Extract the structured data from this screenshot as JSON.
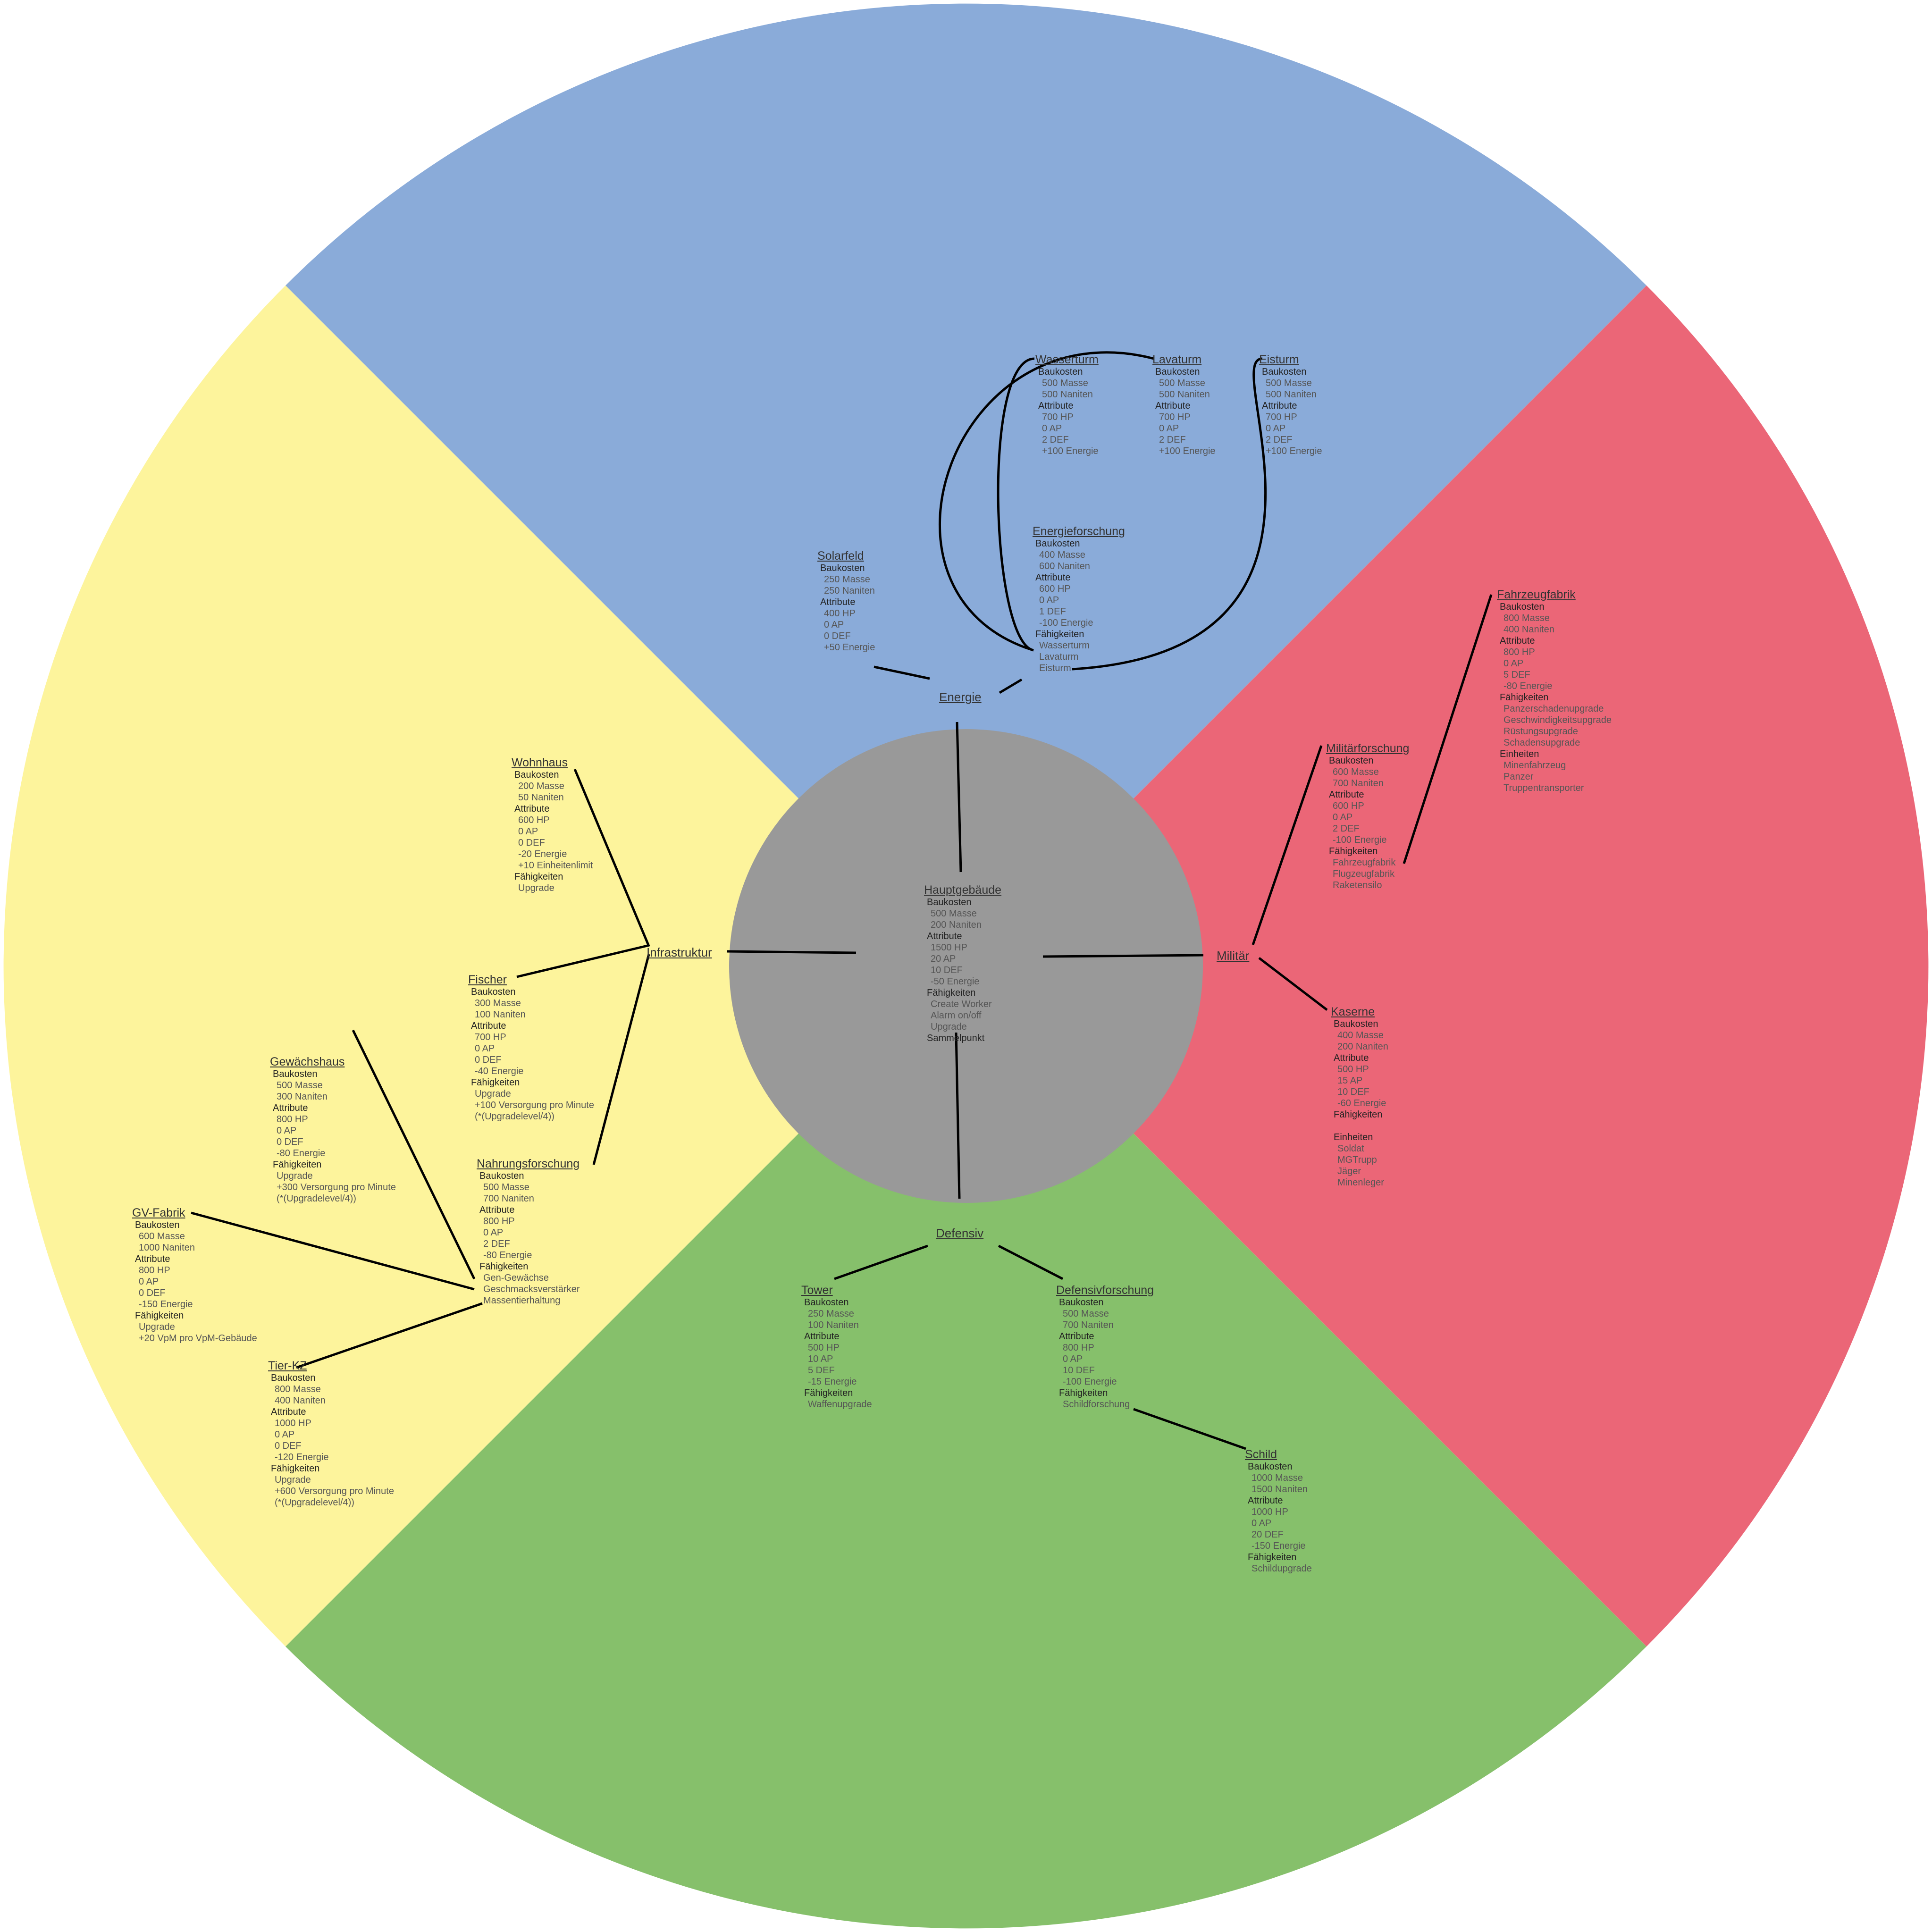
{
  "colors": {
    "energie": "#8AABD9",
    "militaer": "#EB6677",
    "defensiv": "#86C06B",
    "infrastruktur": "#FDF49C",
    "center": "#999999"
  },
  "categories": {
    "energie": "Energie",
    "militaer": "Militär",
    "defensiv": "Defensiv",
    "infrastruktur": "Infrastruktur"
  },
  "buildings": {
    "hauptgebaeude": {
      "title": "Hauptgebäude",
      "sections": [
        {
          "label": "Baukosten",
          "items": [
            "500 Masse",
            "200 Naniten"
          ]
        },
        {
          "label": "Attribute",
          "items": [
            "1500 HP",
            "20 AP",
            "10 DEF",
            "-50 Energie"
          ]
        },
        {
          "label": "Fähigkeiten",
          "items": [
            "Create Worker",
            "Alarm on/off",
            "Upgrade"
          ]
        },
        {
          "label": "Sammelpunkt",
          "items": []
        }
      ]
    },
    "solarfeld": {
      "title": "Solarfeld",
      "sections": [
        {
          "label": "Baukosten",
          "items": [
            "250 Masse",
            "250 Naniten"
          ]
        },
        {
          "label": "Attribute",
          "items": [
            "400 HP",
            "0 AP",
            "0 DEF",
            "+50 Energie"
          ]
        }
      ]
    },
    "energieforschung": {
      "title": "Energieforschung",
      "sections": [
        {
          "label": "Baukosten",
          "items": [
            "400 Masse",
            "600 Naniten"
          ]
        },
        {
          "label": "Attribute",
          "items": [
            "600 HP",
            "0 AP",
            "1 DEF",
            "-100 Energie"
          ]
        },
        {
          "label": "Fähigkeiten",
          "items": [
            "Wasserturm",
            "Lavaturm",
            "Eisturm"
          ]
        }
      ]
    },
    "wasserturm": {
      "title": "Wasserturm",
      "sections": [
        {
          "label": "Baukosten",
          "items": [
            "500 Masse",
            "500 Naniten"
          ]
        },
        {
          "label": "Attribute",
          "items": [
            "700 HP",
            "0 AP",
            "2 DEF",
            "+100 Energie"
          ]
        }
      ]
    },
    "lavaturm": {
      "title": "Lavaturm",
      "sections": [
        {
          "label": "Baukosten",
          "items": [
            "500 Masse",
            "500 Naniten"
          ]
        },
        {
          "label": "Attribute",
          "items": [
            "700 HP",
            "0 AP",
            "2 DEF",
            "+100 Energie"
          ]
        }
      ]
    },
    "eisturm": {
      "title": "Eisturm",
      "sections": [
        {
          "label": "Baukosten",
          "items": [
            "500 Masse",
            "500 Naniten"
          ]
        },
        {
          "label": "Attribute",
          "items": [
            "700 HP",
            "0 AP",
            "2 DEF",
            "+100 Energie"
          ]
        }
      ]
    },
    "fahrzeugfabrik": {
      "title": "Fahrzeugfabrik",
      "sections": [
        {
          "label": "Baukosten",
          "items": [
            "800 Masse",
            "400 Naniten"
          ]
        },
        {
          "label": "Attribute",
          "items": [
            "800 HP",
            "0 AP",
            "5 DEF",
            "-80 Energie"
          ]
        },
        {
          "label": "Fähigkeiten",
          "items": [
            "Panzerschadenupgrade",
            "Geschwindigkeitsupgrade",
            "Rüstungsupgrade",
            "Schadensupgrade"
          ]
        },
        {
          "label": "Einheiten",
          "items": [
            "Minenfahrzeug",
            "Panzer",
            "Truppentransporter"
          ]
        }
      ]
    },
    "militaerforschung": {
      "title": "Militärforschung",
      "sections": [
        {
          "label": "Baukosten",
          "items": [
            "600 Masse",
            "700 Naniten"
          ]
        },
        {
          "label": "Attribute",
          "items": [
            "600 HP",
            "0 AP",
            "2 DEF",
            "-100 Energie"
          ]
        },
        {
          "label": "Fähigkeiten",
          "items": [
            "Fahrzeugfabrik",
            "Flugzeugfabrik",
            "Raketensilo"
          ]
        }
      ]
    },
    "kaserne": {
      "title": "Kaserne",
      "sections": [
        {
          "label": "Baukosten",
          "items": [
            "400 Masse",
            "200 Naniten"
          ]
        },
        {
          "label": "Attribute",
          "items": [
            "500 HP",
            "15 AP",
            "10 DEF",
            "-60 Energie"
          ]
        },
        {
          "label": "Fähigkeiten",
          "items": [
            ""
          ]
        },
        {
          "label": "Einheiten",
          "items": [
            "Soldat",
            "MGTrupp",
            "Jäger",
            "Minenleger"
          ]
        }
      ]
    },
    "tower": {
      "title": "Tower",
      "sections": [
        {
          "label": "Baukosten",
          "items": [
            "250 Masse",
            "100 Naniten"
          ]
        },
        {
          "label": "Attribute",
          "items": [
            "500 HP",
            "10 AP",
            "5 DEF",
            "-15 Energie"
          ]
        },
        {
          "label": "Fähigkeiten",
          "items": [
            "Waffenupgrade"
          ]
        }
      ]
    },
    "defensivforschung": {
      "title": "Defensivforschung",
      "sections": [
        {
          "label": "Baukosten",
          "items": [
            "500 Masse",
            "700 Naniten"
          ]
        },
        {
          "label": "Attribute",
          "items": [
            "800 HP",
            "0 AP",
            "10 DEF",
            "-100 Energie"
          ]
        },
        {
          "label": "Fähigkeiten",
          "items": [
            "Schildforschung"
          ]
        }
      ]
    },
    "schild": {
      "title": "Schild",
      "sections": [
        {
          "label": "Baukosten",
          "items": [
            "1000 Masse",
            "1500 Naniten"
          ]
        },
        {
          "label": "Attribute",
          "items": [
            "1000 HP",
            "0 AP",
            "20 DEF",
            "-150 Energie"
          ]
        },
        {
          "label": "Fähigkeiten",
          "items": [
            "Schildupgrade"
          ]
        }
      ]
    },
    "wohnhaus": {
      "title": "Wohnhaus",
      "sections": [
        {
          "label": "Baukosten",
          "items": [
            "200 Masse",
            "50 Naniten"
          ]
        },
        {
          "label": "Attribute",
          "items": [
            "600 HP",
            "0 AP",
            "0 DEF",
            "-20 Energie",
            "+10 Einheitenlimit"
          ]
        },
        {
          "label": "Fähigkeiten",
          "items": [
            "Upgrade"
          ]
        }
      ]
    },
    "fischer": {
      "title": "Fischer",
      "sections": [
        {
          "label": "Baukosten",
          "items": [
            "300 Masse",
            "100 Naniten"
          ]
        },
        {
          "label": "Attribute",
          "items": [
            "700 HP",
            "0 AP",
            "0 DEF",
            "-40 Energie"
          ]
        },
        {
          "label": "Fähigkeiten",
          "items": [
            "Upgrade",
            "+100 Versorgung pro Minute",
            "(*(Upgradelevel/4))"
          ]
        }
      ]
    },
    "nahrungsforschung": {
      "title": "Nahrungsforschung",
      "sections": [
        {
          "label": "Baukosten",
          "items": [
            "500 Masse",
            "700 Naniten"
          ]
        },
        {
          "label": "Attribute",
          "items": [
            "800 HP",
            "0 AP",
            "2 DEF",
            "-80 Energie"
          ]
        },
        {
          "label": "Fähigkeiten",
          "items": [
            "Gen-Gewächse",
            "Geschmacksverstärker",
            "Massentierhaltung"
          ]
        }
      ]
    },
    "gewaechshaus": {
      "title": "Gewächshaus",
      "sections": [
        {
          "label": "Baukosten",
          "items": [
            "500 Masse",
            "300 Naniten"
          ]
        },
        {
          "label": "Attribute",
          "items": [
            "800 HP",
            "0 AP",
            "0 DEF",
            "-80 Energie"
          ]
        },
        {
          "label": "Fähigkeiten",
          "items": [
            "Upgrade",
            "+300 Versorgung pro Minute",
            "(*(Upgradelevel/4))"
          ]
        }
      ]
    },
    "gvfabrik": {
      "title": "GV-Fabrik",
      "sections": [
        {
          "label": "Baukosten",
          "items": [
            "600 Masse",
            "1000 Naniten"
          ]
        },
        {
          "label": "Attribute",
          "items": [
            "800 HP",
            "0 AP",
            "0 DEF",
            "-150 Energie"
          ]
        },
        {
          "label": "Fähigkeiten",
          "items": [
            "Upgrade",
            "+20 VpM pro VpM-Gebäude"
          ]
        }
      ]
    },
    "tierkz": {
      "title": "Tier-KZ",
      "sections": [
        {
          "label": "Baukosten",
          "items": [
            "800 Masse",
            "400 Naniten"
          ]
        },
        {
          "label": "Attribute",
          "items": [
            "1000 HP",
            "0 AP",
            "0 DEF",
            "-120 Energie"
          ]
        },
        {
          "label": "Fähigkeiten",
          "items": [
            "Upgrade",
            "+600 Versorgung pro Minute",
            "(*(Upgradelevel/4))"
          ]
        }
      ]
    }
  }
}
